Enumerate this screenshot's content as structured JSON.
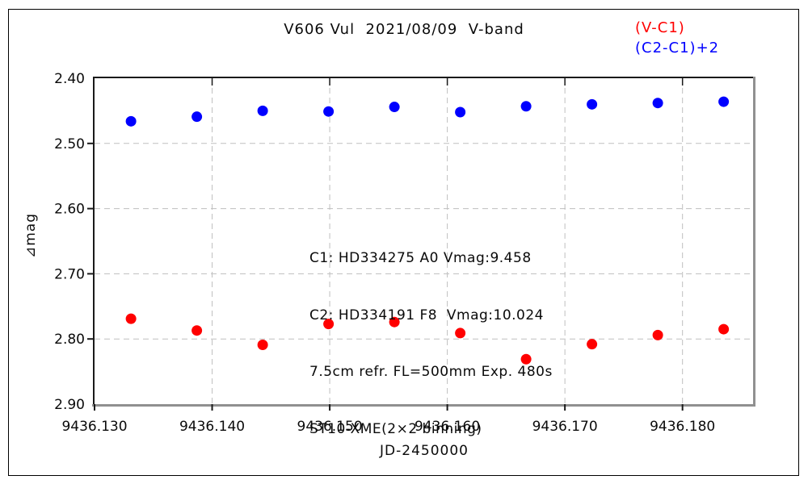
{
  "header": {
    "title": "V606 Vul  2021/08/09  V-band"
  },
  "legend": {
    "series1_label": "(V-C1)",
    "series1_color": "#ff0000",
    "series2_label": "(C2-C1)+2",
    "series2_color": "#0000ff"
  },
  "annotation": {
    "lines": [
      "C1: HD334275 A0 Vmag:9.458",
      "C2: HD334191 F8  Vmag:10.024",
      "7.5cm refr. FL=500mm Exp. 480s",
      "ST10-XME(2×2 binning)"
    ]
  },
  "chart_data": {
    "type": "scatter",
    "title": "V606 Vul 2021/08/09 V-band",
    "xlabel": "JD-2450000",
    "ylabel": "⊿mag",
    "xlim": [
      9436.13,
      9436.186
    ],
    "ylim": [
      2.4,
      2.9
    ],
    "y_axis_inverted_magnitudes": true,
    "grid": "dashed",
    "legend_position": "top-right",
    "x_ticks": [
      9436.13,
      9436.14,
      9436.15,
      9436.16,
      9436.17,
      9436.18
    ],
    "x_tick_labels": [
      "9436.130",
      "9436.140",
      "9436.150",
      "9436.160",
      "9436.170",
      "9436.180"
    ],
    "y_ticks": [
      2.4,
      2.5,
      2.6,
      2.7,
      2.8,
      2.9
    ],
    "y_tick_labels": [
      "2.40",
      "2.50",
      "2.60",
      "2.70",
      "2.80",
      "2.90"
    ],
    "x": [
      9436.1331,
      9436.1387,
      9436.1443,
      9436.1499,
      9436.1555,
      9436.1611,
      9436.1667,
      9436.1723,
      9436.1779,
      9436.1835
    ],
    "series": [
      {
        "name": "(V-C1)",
        "color": "#ff0000",
        "values": [
          2.769,
          2.787,
          2.809,
          2.777,
          2.774,
          2.791,
          2.831,
          2.808,
          2.794,
          2.785
        ]
      },
      {
        "name": "(C2-C1)+2",
        "color": "#0000ff",
        "values": [
          2.466,
          2.459,
          2.45,
          2.451,
          2.444,
          2.452,
          2.443,
          2.44,
          2.438,
          2.436
        ]
      }
    ]
  }
}
